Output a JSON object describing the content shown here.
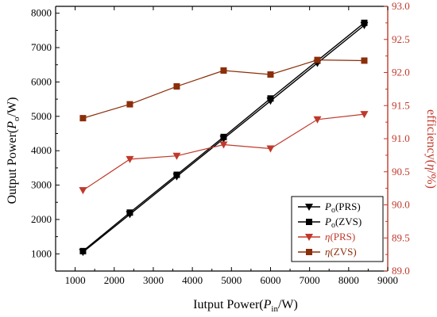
{
  "chart_data": {
    "type": "line",
    "x": [
      1200,
      2400,
      3600,
      4800,
      6000,
      7200,
      8400
    ],
    "xlabel": {
      "main": "Iutput Power(",
      "italic": "P",
      "sub": "in",
      "tail": "/W)"
    },
    "ylabel_left": {
      "main": "Output Power(",
      "italic": "P",
      "sub": "o",
      "tail": "/W)"
    },
    "ylabel_right": {
      "main": "efficiency(",
      "italic": "η",
      "tail": "/%)"
    },
    "xlim": [
      500,
      9000
    ],
    "ylim_left": [
      500,
      8200
    ],
    "ylim_right": [
      89.0,
      93.0
    ],
    "xticks": [
      "1000",
      "2000",
      "3000",
      "4000",
      "5000",
      "6000",
      "7000",
      "8000",
      "9000"
    ],
    "yticks_left": [
      "1000",
      "2000",
      "3000",
      "4000",
      "5000",
      "6000",
      "7000",
      "8000"
    ],
    "yticks_right": [
      "89.0",
      "89.5",
      "90.0",
      "90.5",
      "91.0",
      "91.5",
      "92.0",
      "92.5",
      "93.0"
    ],
    "colors": {
      "black": "#000000",
      "red": "#c0392b",
      "brown": "#8b2e0a",
      "axis_right": "#c0392b"
    },
    "series": [
      {
        "name": "Po(PRS)",
        "label": {
          "italic": "P",
          "sub": "o",
          "tail": "(PRS)"
        },
        "axis": "left",
        "marker": "triangle-down",
        "color": "#000000",
        "values": [
          1050,
          2150,
          3250,
          4350,
          5450,
          6550,
          7650
        ]
      },
      {
        "name": "Po(ZVS)",
        "label": {
          "italic": "P",
          "sub": "o",
          "tail": "(ZVS)"
        },
        "axis": "left",
        "marker": "square",
        "color": "#000000",
        "values": [
          1080,
          2200,
          3300,
          4400,
          5520,
          6620,
          7720
        ]
      },
      {
        "name": "η(PRS)",
        "label": {
          "italic": "η",
          "tail": "(PRS)"
        },
        "axis": "right",
        "marker": "triangle-down",
        "color": "#c0392b",
        "values": [
          90.22,
          90.69,
          90.74,
          90.91,
          90.85,
          91.29,
          91.37
        ]
      },
      {
        "name": "η(ZVS)",
        "label": {
          "italic": "η",
          "tail": "(ZVS)"
        },
        "axis": "right",
        "marker": "square",
        "color": "#8b2e0a",
        "values": [
          91.31,
          91.52,
          91.79,
          92.03,
          91.97,
          92.19,
          92.18
        ]
      }
    ],
    "legend_position": "bottom-right"
  }
}
